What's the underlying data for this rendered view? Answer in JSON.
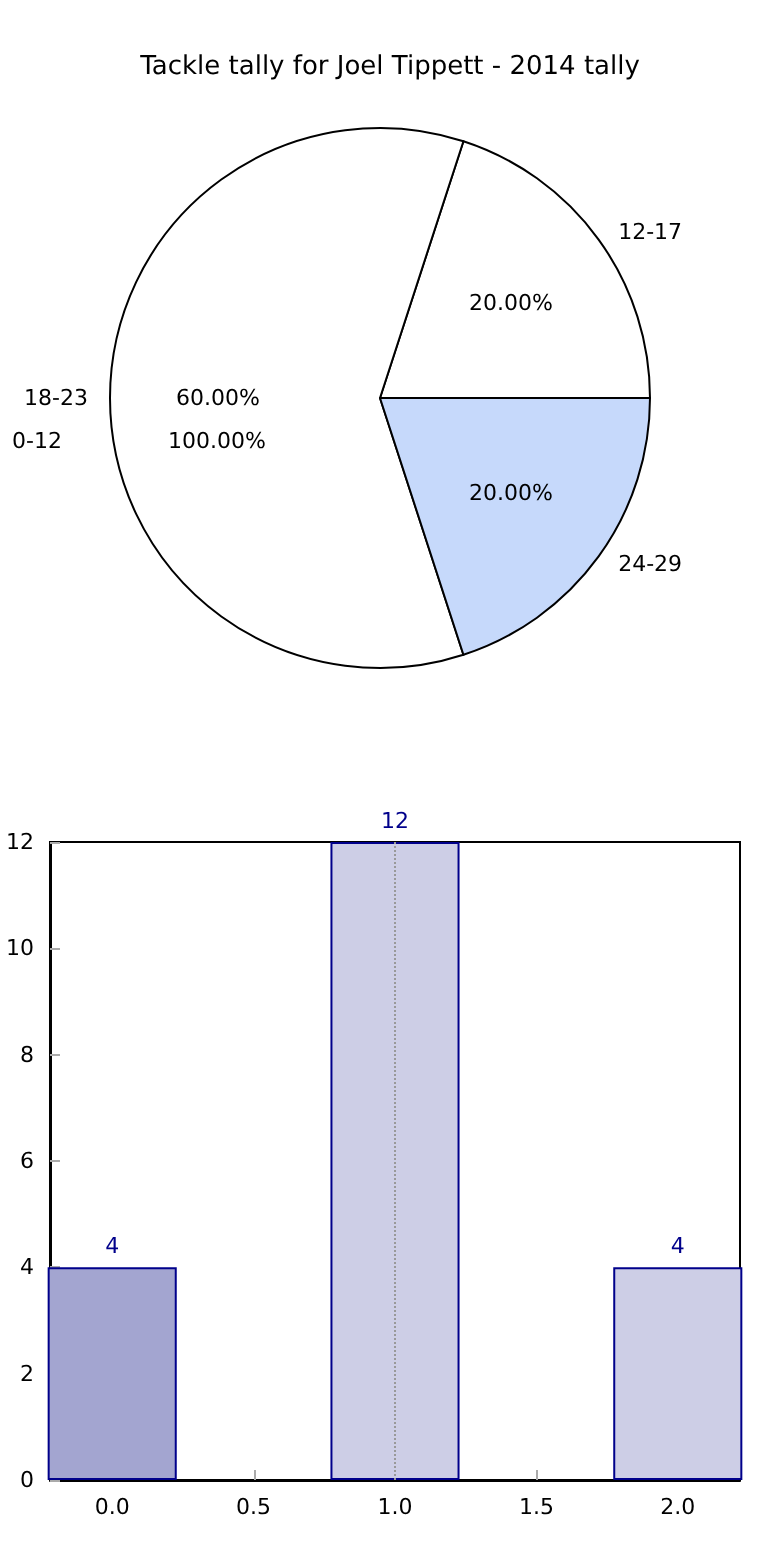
{
  "chart_data": [
    {
      "type": "pie",
      "title": "Tackle tally for Joel Tippett - 2014 tally",
      "categories": [
        "12-17",
        "18-23",
        "24-29"
      ],
      "values": [
        20,
        60,
        20
      ],
      "colors": [
        "#ffffff",
        "#ffffff",
        "#c6d9fb"
      ],
      "value_labels": [
        "20.00%",
        "60.00%",
        "20.00%"
      ],
      "annotations": [
        "0-12",
        "100.00%"
      ],
      "legend": false
    },
    {
      "type": "bar",
      "x": [
        0,
        1,
        2
      ],
      "values": [
        4,
        12,
        4
      ],
      "colors": [
        "#a3a5d0",
        "#cdcee6",
        "#cdcee6"
      ],
      "xlim": [
        -0.22,
        2.22
      ],
      "xticks": [
        {
          "value": 0,
          "label": "0.0"
        },
        {
          "value": 0.5,
          "label": "0.5"
        },
        {
          "value": 1,
          "label": "1.0"
        },
        {
          "value": 1.5,
          "label": "1.5"
        },
        {
          "value": 2,
          "label": "2.0"
        }
      ],
      "ylim": [
        0,
        12
      ],
      "yticks": [
        0,
        2,
        4,
        6,
        8,
        10,
        12
      ],
      "data_labels": true,
      "grid": false,
      "legend": false,
      "ref_lines": [
        {
          "axis": "x",
          "value": 1,
          "color": "#999999",
          "line_style": "dotted"
        }
      ]
    }
  ]
}
